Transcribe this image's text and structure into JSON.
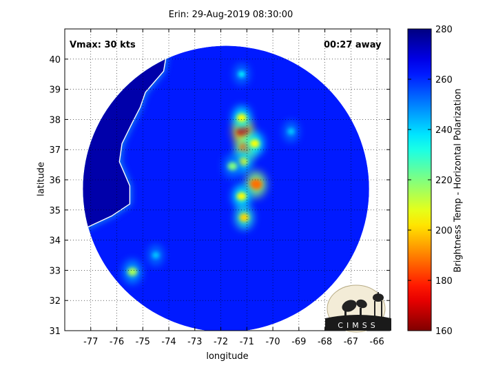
{
  "title": "Erin: 29-Aug-2019 08:30:00",
  "vmax_label": "Vmax: 30 kts",
  "away_label": "00:27 away",
  "logo_text": "CIMSS",
  "chart_data": {
    "type": "heatmap",
    "title": "Erin: 29-Aug-2019 08:30:00",
    "xlabel": "longitude",
    "ylabel": "latitude",
    "colorbar_label": "Brightness Temp - Horizontal Polarization",
    "xlim": [
      -78,
      -65.5
    ],
    "ylim": [
      31,
      41
    ],
    "xticks": [
      -77,
      -76,
      -75,
      -74,
      -73,
      -72,
      -71,
      -70,
      -69,
      -68,
      -67,
      -66
    ],
    "yticks": [
      31,
      32,
      33,
      34,
      35,
      36,
      37,
      38,
      39,
      40
    ],
    "colorbar_range": [
      160,
      280
    ],
    "colorbar_ticks": [
      160,
      180,
      200,
      220,
      240,
      260,
      280
    ],
    "grid": true,
    "background_value": 262,
    "swath": {
      "center_lon": -71.8,
      "center_lat": 35.7,
      "radius_deg": 5.5
    },
    "features": [
      {
        "lon": -71.15,
        "lat": 37.6,
        "value": 170
      },
      {
        "lon": -71.2,
        "lat": 38.05,
        "value": 205
      },
      {
        "lon": -71.05,
        "lat": 37.05,
        "value": 188
      },
      {
        "lon": -70.7,
        "lat": 37.2,
        "value": 205
      },
      {
        "lon": -71.15,
        "lat": 36.6,
        "value": 210
      },
      {
        "lon": -71.55,
        "lat": 36.45,
        "value": 220
      },
      {
        "lon": -70.65,
        "lat": 35.85,
        "value": 188
      },
      {
        "lon": -71.2,
        "lat": 35.45,
        "value": 205
      },
      {
        "lon": -71.1,
        "lat": 34.75,
        "value": 200
      },
      {
        "lon": -75.4,
        "lat": 32.95,
        "value": 215
      },
      {
        "lon": -71.2,
        "lat": 39.5,
        "value": 235
      },
      {
        "lon": -69.3,
        "lat": 37.6,
        "value": 240
      },
      {
        "lon": -74.5,
        "lat": 33.5,
        "value": 240
      }
    ],
    "land_value": 275,
    "colors": {
      "swath_background": "#1a50e6",
      "land": "#0c1e96",
      "coast_band": "#20c8e6",
      "coastline": "#ffffff",
      "grid": "#000000"
    }
  }
}
